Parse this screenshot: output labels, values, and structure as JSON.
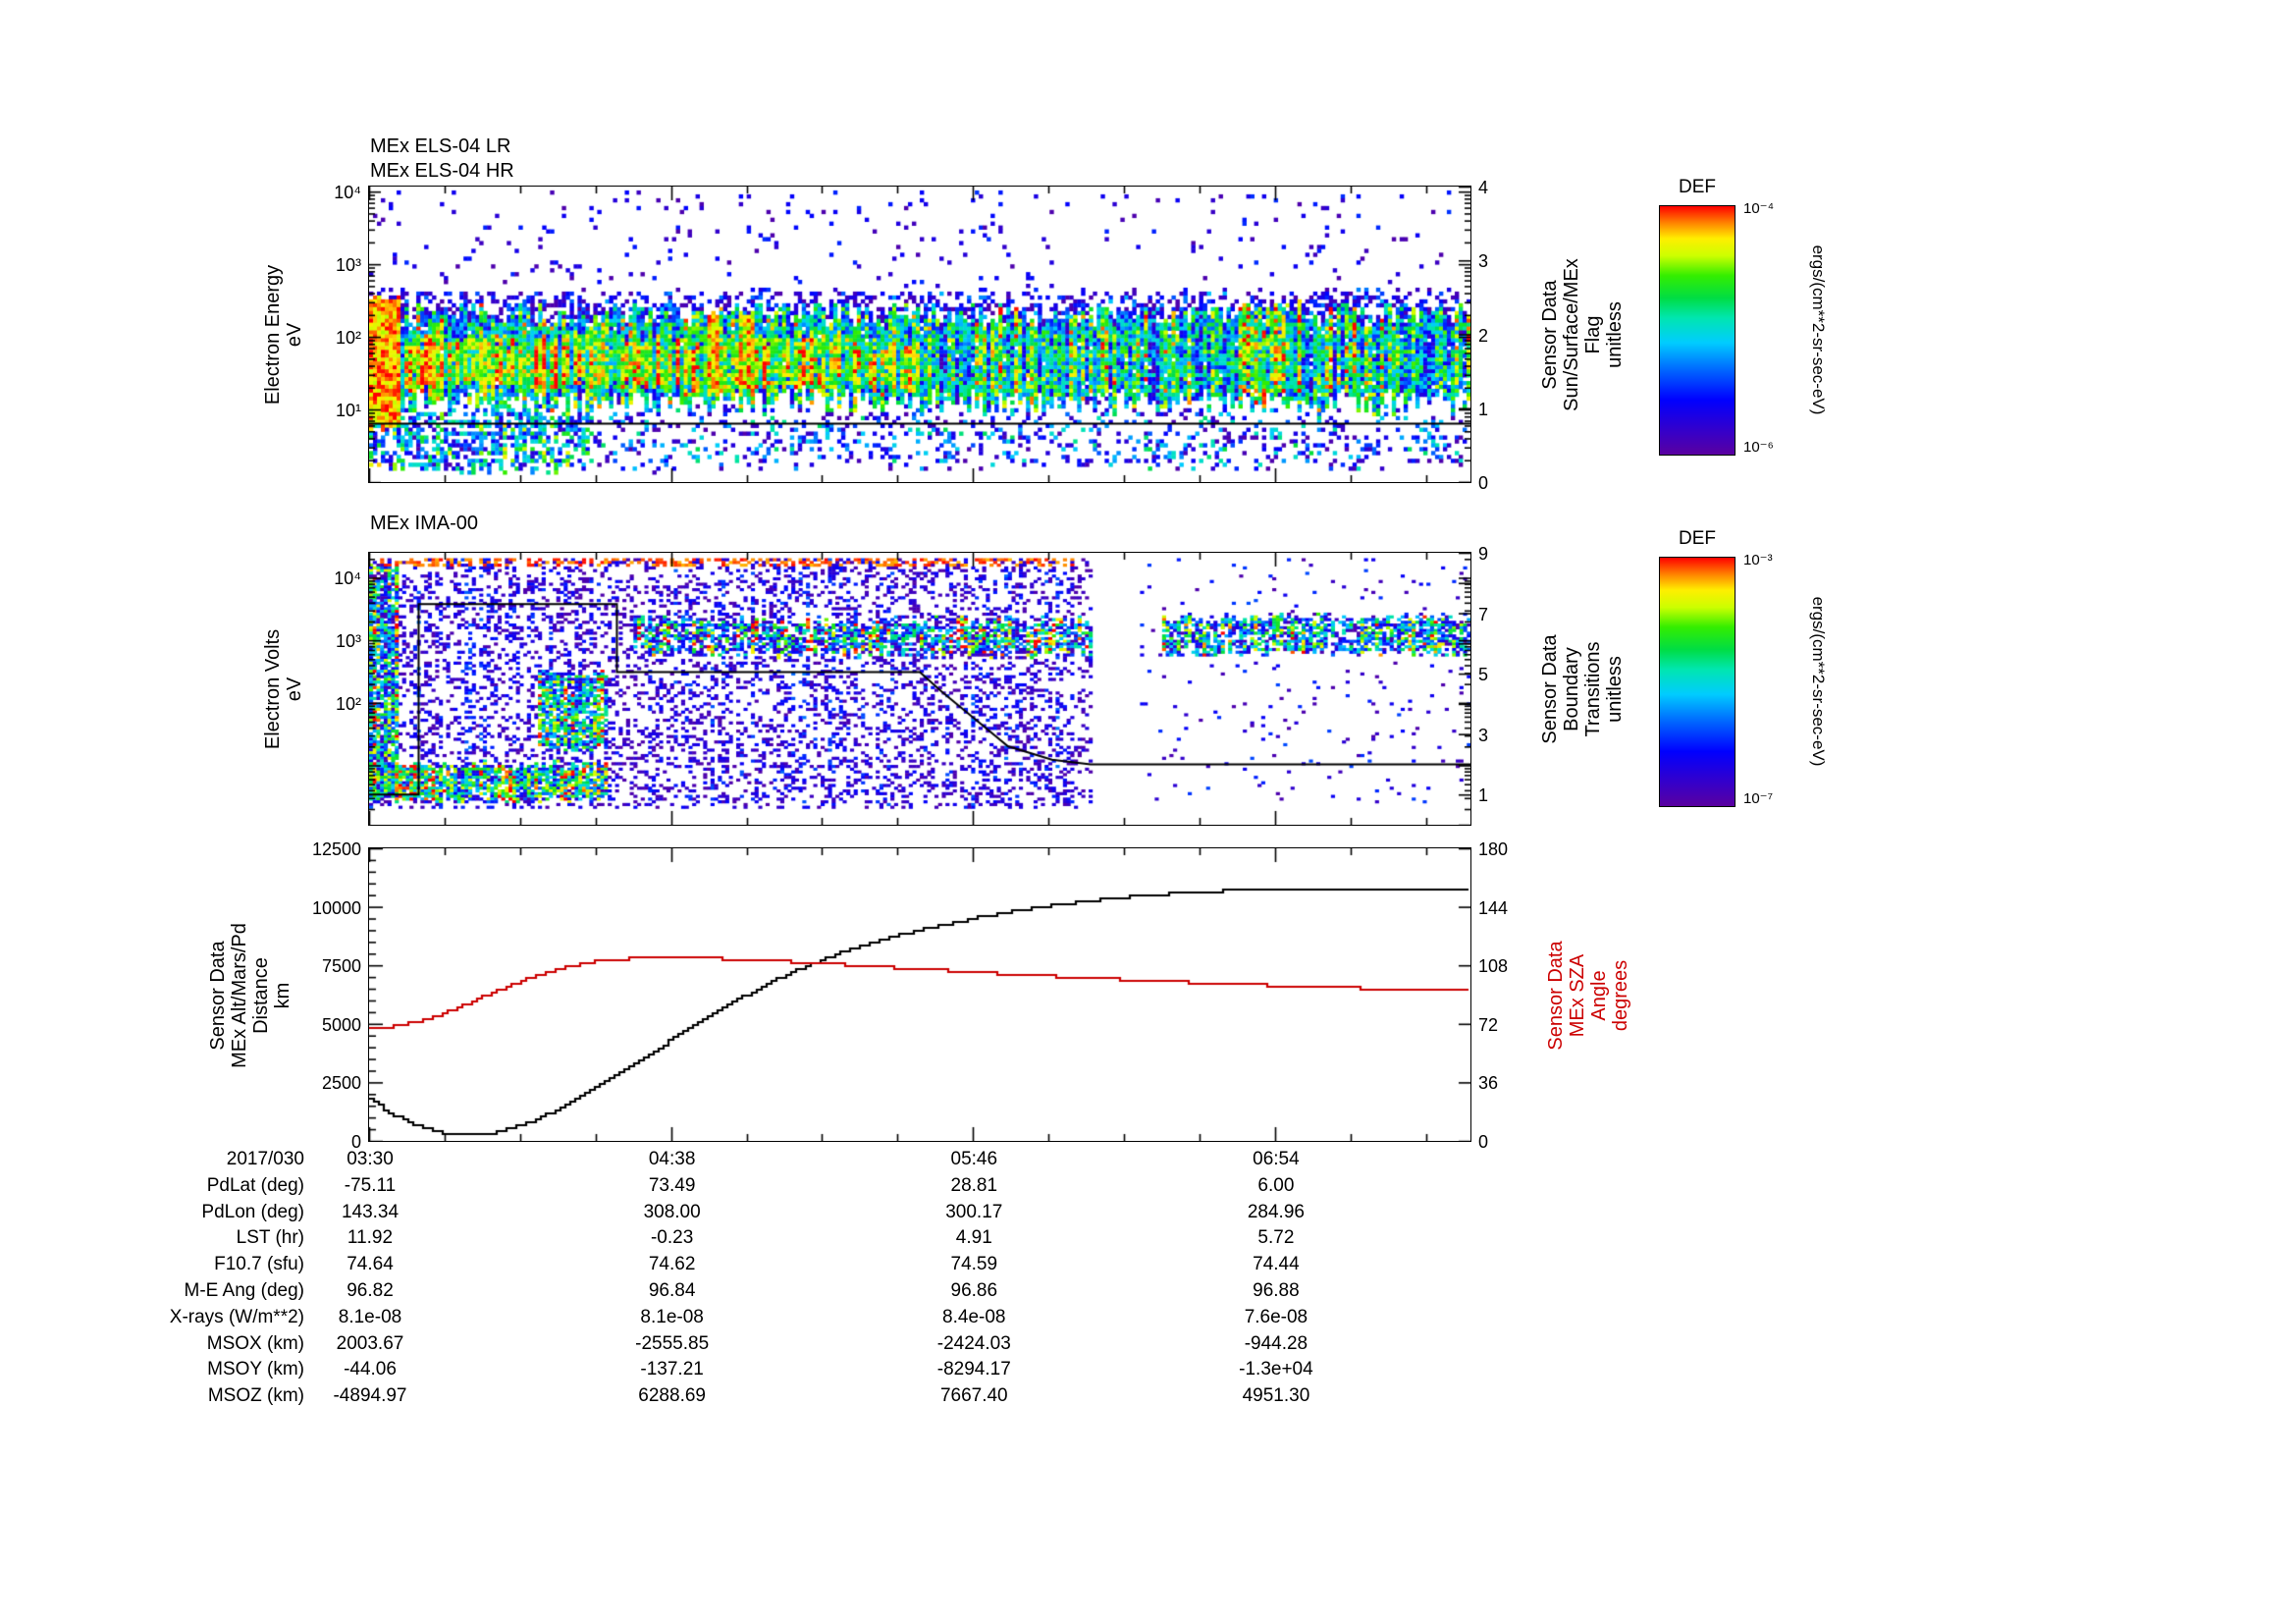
{
  "app": {
    "background": "#ffffff"
  },
  "chart_data": [
    {
      "id": "els",
      "type": "heatmap",
      "titles": [
        "MEx ELS-04 LR",
        "MEx ELS-04 HR"
      ],
      "ylabel": "Electron Energy\neV",
      "yscale": "log",
      "log_range": [
        0,
        4.07
      ],
      "yticks": [
        {
          "log": 1,
          "label": "10¹"
        },
        {
          "log": 2,
          "label": "10²"
        },
        {
          "log": 3,
          "label": "10³"
        },
        {
          "log": 4,
          "label": "10⁴"
        }
      ],
      "right_axis": {
        "label": "Sensor Data\nSun/Surface/MEx\nFlag\nunitless",
        "range": [
          0,
          4
        ],
        "marks": [
          0,
          1,
          2,
          3,
          4
        ],
        "labels": [
          {
            "v": 0,
            "text": "0"
          },
          {
            "v": 1,
            "text": "1"
          },
          {
            "v": 2,
            "text": "2"
          },
          {
            "v": 3,
            "text": "3"
          },
          {
            "v": 4,
            "text": "4"
          }
        ]
      },
      "overlay_line": {
        "name": "sun-surface-mex-flag",
        "axis": "right",
        "color": "#000000",
        "points": [
          [
            0,
            0.79
          ],
          [
            1,
            0.79
          ]
        ]
      },
      "colorbar": {
        "title": "DEF",
        "unit": "ergs/(cm**2-sr-sec-eV)",
        "top": "10⁻⁴",
        "bottom": "10⁻⁶"
      },
      "regions": [
        {
          "t": [
            0,
            1
          ],
          "e": [
            1.1,
            2.3
          ],
          "density": 0.97,
          "base": 0.52,
          "rand": 0.28,
          "streak": 0.25,
          "jitter": 0.18
        },
        {
          "t": [
            0.03,
            0.5
          ],
          "e": [
            1.3,
            1.95
          ],
          "density": 0.95,
          "base": 0.68,
          "rand": 0.22,
          "streak": 0.3,
          "jitter": 0.1
        },
        {
          "t": [
            0,
            0.03
          ],
          "e": [
            0.75,
            2.55
          ],
          "density": 1.0,
          "base": 0.9,
          "rand": 0.12,
          "streak": 0.0,
          "jitter": 0.05
        },
        {
          "t": [
            0.055,
            0.065
          ],
          "e": [
            1.1,
            2.2
          ],
          "density": 0.95,
          "base": 0.78,
          "rand": 0.2,
          "streak": 0.0,
          "jitter": 0.05
        },
        {
          "t": [
            0.1,
            0.11
          ],
          "e": [
            1.1,
            2.0
          ],
          "density": 0.9,
          "base": 0.72,
          "rand": 0.2,
          "streak": 0.0,
          "jitter": 0.05
        },
        {
          "t": [
            0.308,
            0.318
          ],
          "e": [
            1.2,
            2.35
          ],
          "density": 0.95,
          "base": 0.85,
          "rand": 0.15,
          "streak": 0.0,
          "jitter": 0.05
        },
        {
          "t": [
            0.336,
            0.35
          ],
          "e": [
            1.2,
            2.35
          ],
          "density": 0.95,
          "base": 0.82,
          "rand": 0.18,
          "streak": 0.0,
          "jitter": 0.05
        },
        {
          "t": [
            0.79,
            0.845
          ],
          "e": [
            1.15,
            2.4
          ],
          "density": 0.9,
          "base": 0.6,
          "rand": 0.3,
          "streak": 0.2,
          "jitter": 0.1
        },
        {
          "t": [
            0,
            1
          ],
          "e": [
            2.05,
            2.62
          ],
          "density": 0.5,
          "base": 0.13,
          "rand": 0.2,
          "streak": 0.15,
          "jitter": 0.05
        },
        {
          "t": [
            0,
            1
          ],
          "e": [
            0.15,
            4.0
          ],
          "density": 0.05,
          "base": 0.1,
          "rand": 0.18,
          "streak": 0.0,
          "jitter": 0.0
        },
        {
          "t": [
            0,
            0.2
          ],
          "e": [
            0.2,
            1.0
          ],
          "density": 0.6,
          "base": 0.42,
          "rand": 0.3,
          "streak": 0.2,
          "jitter": 0.1
        },
        {
          "t": [
            0.2,
            1
          ],
          "e": [
            0.2,
            0.95
          ],
          "density": 0.2,
          "base": 0.28,
          "rand": 0.3,
          "streak": 0.1,
          "jitter": 0.1
        }
      ]
    },
    {
      "id": "ima",
      "type": "heatmap",
      "titles": [
        "MEx IMA-00"
      ],
      "ylabel": "Electron Volts\neV",
      "yscale": "log",
      "log_range": [
        0.05,
        4.4
      ],
      "yticks": [
        {
          "log": 2,
          "label": "10²"
        },
        {
          "log": 3,
          "label": "10³"
        },
        {
          "log": 4,
          "label": "10⁴"
        }
      ],
      "right_axis": {
        "label": "Sensor Data\nBoundary\nTransitions\nunitless",
        "range": [
          0,
          9
        ],
        "marks": [
          0,
          1,
          2,
          3,
          4,
          5,
          6,
          7,
          8,
          9
        ],
        "labels": [
          {
            "v": 1,
            "text": "1"
          },
          {
            "v": 3,
            "text": "3"
          },
          {
            "v": 5,
            "text": "5"
          },
          {
            "v": 7,
            "text": "7"
          },
          {
            "v": 9,
            "text": "9"
          }
        ]
      },
      "overlay_line": {
        "name": "boundary-transitions",
        "axis": "right",
        "color": "#000000",
        "points": [
          [
            0,
            1
          ],
          [
            0.045,
            1
          ],
          [
            0.045,
            7.3
          ],
          [
            0.225,
            7.3
          ],
          [
            0.225,
            5.05
          ],
          [
            0.5,
            5.05
          ],
          [
            0.52,
            4.4
          ],
          [
            0.54,
            3.8
          ],
          [
            0.56,
            3.2
          ],
          [
            0.58,
            2.6
          ],
          [
            0.62,
            2.15
          ],
          [
            0.655,
            2.0
          ],
          [
            1,
            2.0
          ]
        ]
      },
      "colorbar": {
        "title": "DEF",
        "unit": "ergs/(cm**2-sr-sec-eV)",
        "top": "10⁻³",
        "bottom": "10⁻⁷"
      },
      "regions": [
        {
          "t": [
            0,
            0.655
          ],
          "e": [
            0.3,
            4.3
          ],
          "density": 0.32,
          "base": 0.11,
          "rand": 0.14,
          "streak": 0.12,
          "jitter": 0.0
        },
        {
          "t": [
            0,
            0.64
          ],
          "e": [
            4.18,
            4.32
          ],
          "density": 0.4,
          "base": 0.95,
          "rand": 0.05,
          "streak": 0.0,
          "jitter": 0.0
        },
        {
          "t": [
            0,
            0.025
          ],
          "e": [
            0.5,
            4.2
          ],
          "density": 0.85,
          "base": 0.5,
          "rand": 0.45,
          "streak": 0.3,
          "jitter": 0.05
        },
        {
          "t": [
            0.155,
            0.215
          ],
          "e": [
            1.25,
            2.45
          ],
          "density": 0.8,
          "base": 0.55,
          "rand": 0.35,
          "streak": 0.25,
          "jitter": 0.1
        },
        {
          "t": [
            0,
            0.215
          ],
          "e": [
            0.45,
            1.0
          ],
          "density": 0.85,
          "base": 0.6,
          "rand": 0.35,
          "streak": 0.25,
          "jitter": 0.08
        },
        {
          "t": [
            0.24,
            0.655
          ],
          "e": [
            2.8,
            3.32
          ],
          "density": 0.72,
          "base": 0.45,
          "rand": 0.42,
          "streak": 0.35,
          "jitter": 0.1
        },
        {
          "t": [
            0.72,
            1
          ],
          "e": [
            2.8,
            3.37
          ],
          "density": 0.78,
          "base": 0.4,
          "rand": 0.38,
          "streak": 0.3,
          "jitter": 0.08
        },
        {
          "t": [
            0.7,
            1
          ],
          "e": [
            0.4,
            4.3
          ],
          "density": 0.035,
          "base": 0.13,
          "rand": 0.18,
          "streak": 0.0,
          "jitter": 0.0
        }
      ]
    },
    {
      "id": "lines",
      "type": "line",
      "left_axis": {
        "label": "Sensor Data\nMEx Alt/Mars/Pd\nDistance\nkm",
        "range": [
          0,
          12500
        ],
        "marks": [
          0,
          2500,
          5000,
          7500,
          10000,
          12500
        ],
        "minor_step": 500,
        "labels": [
          {
            "v": 0,
            "text": "0"
          },
          {
            "v": 2500,
            "text": "2500"
          },
          {
            "v": 5000,
            "text": "5000"
          },
          {
            "v": 7500,
            "text": "7500"
          },
          {
            "v": 10000,
            "text": "10000"
          },
          {
            "v": 12500,
            "text": "12500"
          }
        ]
      },
      "right_axis": {
        "label": "Sensor Data\nMEx SZA\nAngle\ndegrees",
        "color": "#cc0000",
        "range": [
          0,
          180
        ],
        "marks": [
          0,
          36,
          72,
          108,
          144,
          180
        ],
        "labels": [
          {
            "v": 0,
            "text": "0"
          },
          {
            "v": 36,
            "text": "36"
          },
          {
            "v": 72,
            "text": "72"
          },
          {
            "v": 108,
            "text": "108"
          },
          {
            "v": 144,
            "text": "144"
          },
          {
            "v": 180,
            "text": "180"
          }
        ]
      },
      "series": [
        {
          "name": "mex-altitude-km",
          "axis": "left",
          "color": "#000000",
          "points": [
            [
              0,
              1750
            ],
            [
              6,
              1050
            ],
            [
              12,
              550
            ],
            [
              16,
              350
            ],
            [
              20,
              280
            ],
            [
              24,
              280
            ],
            [
              28,
              360
            ],
            [
              32,
              550
            ],
            [
              36,
              820
            ],
            [
              40,
              1150
            ],
            [
              44,
              1530
            ],
            [
              48,
              1950
            ],
            [
              52,
              2400
            ],
            [
              56,
              2870
            ],
            [
              60,
              3350
            ],
            [
              64,
              3840
            ],
            [
              68,
              4330
            ],
            [
              72,
              4810
            ],
            [
              76,
              5280
            ],
            [
              80,
              5730
            ],
            [
              84,
              6160
            ],
            [
              88,
              6560
            ],
            [
              92,
              6940
            ],
            [
              96,
              7290
            ],
            [
              100,
              7610
            ],
            [
              104,
              7900
            ],
            [
              108,
              8160
            ],
            [
              112,
              8400
            ],
            [
              116,
              8620
            ],
            [
              120,
              8820
            ],
            [
              126,
              9100
            ],
            [
              132,
              9350
            ],
            [
              138,
              9580
            ],
            [
              144,
              9780
            ],
            [
              150,
              9960
            ],
            [
              156,
              10120
            ],
            [
              162,
              10260
            ],
            [
              168,
              10380
            ],
            [
              174,
              10480
            ],
            [
              180,
              10560
            ],
            [
              186,
              10630
            ],
            [
              192,
              10680
            ],
            [
              200,
              10730
            ],
            [
              210,
              10760
            ],
            [
              220,
              10775
            ],
            [
              232,
              10780
            ],
            [
              248,
              10780
            ]
          ]
        },
        {
          "name": "mex-sza-deg",
          "axis": "right",
          "color": "#cc0000",
          "points": [
            [
              0,
              69
            ],
            [
              5,
              70.5
            ],
            [
              10,
              73
            ],
            [
              15,
              77
            ],
            [
              20,
              82
            ],
            [
              25,
              88
            ],
            [
              30,
              94
            ],
            [
              35,
              99.5
            ],
            [
              40,
              104
            ],
            [
              45,
              107.5
            ],
            [
              50,
              110
            ],
            [
              55,
              111.5
            ],
            [
              60,
              112.3
            ],
            [
              65,
              112.6
            ],
            [
              70,
              112.6
            ],
            [
              75,
              112.4
            ],
            [
              80,
              112
            ],
            [
              85,
              111.5
            ],
            [
              90,
              110.9
            ],
            [
              95,
              110.2
            ],
            [
              100,
              109.4
            ],
            [
              105,
              108.6
            ],
            [
              110,
              107.8
            ],
            [
              115,
              107
            ],
            [
              120,
              106.2
            ],
            [
              126,
              105.3
            ],
            [
              132,
              104.4
            ],
            [
              138,
              103.5
            ],
            [
              144,
              102.6
            ],
            [
              150,
              101.8
            ],
            [
              156,
              101
            ],
            [
              162,
              100.2
            ],
            [
              168,
              99.4
            ],
            [
              174,
              98.7
            ],
            [
              180,
              98
            ],
            [
              186,
              97.3
            ],
            [
              192,
              96.7
            ],
            [
              198,
              96.1
            ],
            [
              204,
              95.5
            ],
            [
              210,
              95
            ],
            [
              216,
              94.5
            ],
            [
              222,
              94
            ],
            [
              228,
              93.6
            ],
            [
              234,
              93.2
            ],
            [
              240,
              92.8
            ],
            [
              248,
              92.3
            ]
          ]
        }
      ]
    }
  ],
  "xaxis": {
    "date_label": "2017/030",
    "tick_labels": [
      "03:30",
      "04:38",
      "05:46",
      "06:54"
    ],
    "tick_minutes": [
      0,
      68,
      136,
      204
    ],
    "minor_step_minutes": 17,
    "total_minutes": 248
  },
  "table": {
    "rows": [
      {
        "label": "2017/030",
        "values": [
          "03:30",
          "04:38",
          "05:46",
          "06:54"
        ]
      },
      {
        "label": "PdLat (deg)",
        "values": [
          "-75.11",
          "73.49",
          "28.81",
          "6.00"
        ]
      },
      {
        "label": "PdLon (deg)",
        "values": [
          "143.34",
          "308.00",
          "300.17",
          "284.96"
        ]
      },
      {
        "label": "LST (hr)",
        "values": [
          "11.92",
          "-0.23",
          "4.91",
          "5.72"
        ]
      },
      {
        "label": "F10.7 (sfu)",
        "values": [
          "74.64",
          "74.62",
          "74.59",
          "74.44"
        ]
      },
      {
        "label": "M-E Ang (deg)",
        "values": [
          "96.82",
          "96.84",
          "96.86",
          "96.88"
        ]
      },
      {
        "label": "X-rays (W/m**2)",
        "values": [
          "8.1e-08",
          "8.1e-08",
          "8.4e-08",
          "7.6e-08"
        ]
      },
      {
        "label": "MSOX (km)",
        "values": [
          "2003.67",
          "-2555.85",
          "-2424.03",
          "-944.28"
        ]
      },
      {
        "label": "MSOY (km)",
        "values": [
          "-44.06",
          "-137.21",
          "-8294.17",
          "-1.3e+04"
        ]
      },
      {
        "label": "MSOZ (km)",
        "values": [
          "-4894.97",
          "6288.69",
          "7667.40",
          "4951.30"
        ]
      }
    ]
  }
}
